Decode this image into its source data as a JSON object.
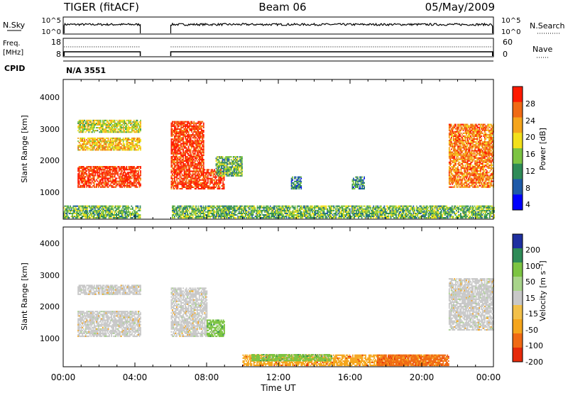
{
  "header": {
    "radar": "TIGER (fitACF)",
    "beam": "Beam 06",
    "date": "05/May/2009"
  },
  "summary_panel": {
    "nsky_label": "N.Sky",
    "nsky_ticks": [
      "10^5",
      "10^0"
    ],
    "nsearch_label": "N.Search",
    "nsearch_ticks": [
      "10^5",
      "10^0"
    ],
    "freq_label_1": "Freq.",
    "freq_label_2": "[MHz]",
    "freq_ticks": [
      "18",
      "8"
    ],
    "nave_label": "Nave",
    "nave_ticks": [
      "60",
      "0"
    ],
    "cpid_label": "CPID",
    "cpid_value": "N/A 3551",
    "data_gaps_hours": [
      [
        4.3,
        6.0
      ]
    ]
  },
  "power_panel": {
    "ylabel": "Slant Range [km]",
    "yticks": [
      "4000",
      "3000",
      "2000",
      "1000"
    ],
    "colorbar_label": "Power [dB]",
    "colorbar_ticks": [
      "28",
      "24",
      "20",
      "16",
      "12",
      "8",
      "4"
    ],
    "colors": [
      "#0000ff",
      "#1e5aa8",
      "#2e8b57",
      "#7cc442",
      "#f2e01a",
      "#f5a51c",
      "#f06a14",
      "#ff1a00"
    ]
  },
  "velocity_panel": {
    "ylabel": "Slant Range [km]",
    "yticks": [
      "4000",
      "3000",
      "2000",
      "1000"
    ],
    "colorbar_label": "Velocity [m s⁻¹]",
    "colorbar_ticks": [
      "200",
      "100",
      "50",
      "15",
      "-15",
      "-50",
      "-100",
      "-200"
    ],
    "colors": [
      "#1e2fa0",
      "#2e8b57",
      "#7cc442",
      "#a8d48a",
      "#c8c8c8",
      "#f2c04a",
      "#f5a51c",
      "#f06a14",
      "#e62a0a"
    ],
    "ground_scatter_color": "#c8c8c8"
  },
  "xaxis": {
    "label": "Time UT",
    "ticks": [
      "00:00",
      "04:00",
      "08:00",
      "12:00",
      "16:00",
      "20:00",
      "00:00"
    ]
  },
  "chart_data": {
    "type": "heatmap",
    "title": "TIGER (fitACF) Beam 06 05/May/2009",
    "xlabel": "Time UT",
    "ylabel": "Slant Range [km]",
    "xlim_hours": [
      0,
      24
    ],
    "ylim_km": [
      180,
      4500
    ],
    "power_regions": [
      {
        "t": [
          0.8,
          4.3
        ],
        "r": [
          1150,
          1800
        ],
        "level": 7
      },
      {
        "t": [
          0.8,
          4.3
        ],
        "r": [
          2300,
          2700
        ],
        "level": 5
      },
      {
        "t": [
          0.8,
          4.3
        ],
        "r": [
          2850,
          3250
        ],
        "level": 4
      },
      {
        "t": [
          6.0,
          7.8
        ],
        "r": [
          1100,
          3200
        ],
        "level": 7
      },
      {
        "t": [
          7.8,
          9.0
        ],
        "r": [
          1100,
          1700
        ],
        "level": 7
      },
      {
        "t": [
          8.5,
          10.0
        ],
        "r": [
          1500,
          2100
        ],
        "level": 3
      },
      {
        "t": [
          12.7,
          13.3
        ],
        "r": [
          1100,
          1500
        ],
        "level": 2
      },
      {
        "t": [
          16.1,
          16.8
        ],
        "r": [
          1100,
          1500
        ],
        "level": 2
      },
      {
        "t": [
          21.5,
          24.0
        ],
        "r": [
          1150,
          3100
        ],
        "level": 6
      },
      {
        "t": [
          0.0,
          24.0
        ],
        "r": [
          200,
          600
        ],
        "level": 3
      }
    ],
    "velocity_regions": [
      {
        "t": [
          0.8,
          4.3
        ],
        "r": [
          1100,
          1900
        ],
        "vel": 0
      },
      {
        "t": [
          0.8,
          4.3
        ],
        "r": [
          2400,
          2700
        ],
        "vel": 0
      },
      {
        "t": [
          6.0,
          8.0
        ],
        "r": [
          1100,
          2600
        ],
        "vel": 0
      },
      {
        "t": [
          8.0,
          9.0
        ],
        "r": [
          1100,
          1600
        ],
        "vel": 50
      },
      {
        "t": [
          21.5,
          24.0
        ],
        "r": [
          1300,
          2900
        ],
        "vel": 0
      },
      {
        "t": [
          10.0,
          21.0
        ],
        "r": [
          200,
          550
        ],
        "vel": -50
      },
      {
        "t": [
          17.5,
          21.5
        ],
        "r": [
          200,
          550
        ],
        "vel": -100
      },
      {
        "t": [
          10.5,
          15.0
        ],
        "r": [
          350,
          550
        ],
        "vel": 50
      }
    ],
    "power_levels_db": [
      4,
      8,
      12,
      16,
      20,
      24,
      28
    ],
    "velocity_levels_ms": [
      -200,
      -100,
      -50,
      -15,
      15,
      50,
      100,
      200
    ]
  }
}
